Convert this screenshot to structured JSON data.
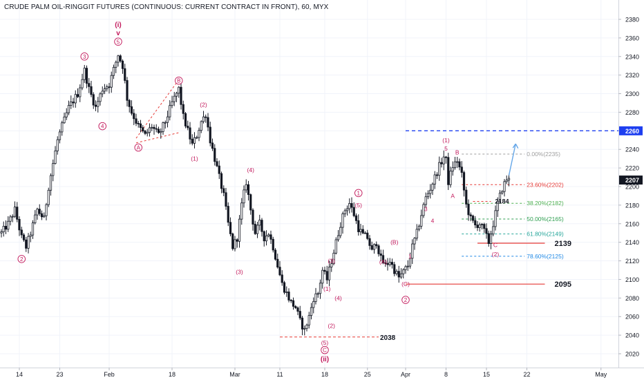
{
  "header": {
    "title": "CRUDE PALM OIL-RINGGIT FUTURES (CONTINUOUS: CURRENT CONTRACT IN FRONT), 60, MYX"
  },
  "colors": {
    "candle": "#131722",
    "wave": "#c2185b",
    "level": "#e53935",
    "blue": "#1e3ff0",
    "arrow": "#64a6e8",
    "fib_0": "#9e9e9e",
    "fib_236": "#e53935",
    "fib_382": "#4caf50",
    "fib_50": "#2e9e50",
    "fib_618": "#26a69a",
    "fib_786": "#1e88e5",
    "last_price_bg": "#131722"
  },
  "chart_data": {
    "type": "candlestick",
    "title": "CRUDE PALM OIL-RINGGIT FUTURES (CONTINUOUS: CURRENT CONTRACT IN FRONT), 60, MYX",
    "ylim": [
      2008,
      2390
    ],
    "y_ticks": [
      2020,
      2040,
      2060,
      2080,
      2100,
      2120,
      2140,
      2160,
      2180,
      2200,
      2220,
      2240,
      2260,
      2280,
      2300,
      2320,
      2340,
      2360,
      2380
    ],
    "x_ticks": [
      {
        "label": "14",
        "i": 8
      },
      {
        "label": "23",
        "i": 26
      },
      {
        "label": "Feb",
        "i": 48
      },
      {
        "label": "18",
        "i": 76
      },
      {
        "label": "Mar",
        "i": 104
      },
      {
        "label": "11",
        "i": 124
      },
      {
        "label": "18",
        "i": 144
      },
      {
        "label": "25",
        "i": 163
      },
      {
        "label": "Apr",
        "i": 180
      },
      {
        "label": "8",
        "i": 198
      },
      {
        "label": "15",
        "i": 216
      },
      {
        "label": "22",
        "i": 234
      },
      {
        "label": "May",
        "i": 267
      }
    ],
    "last_price": 2207,
    "price_path": [
      [
        0,
        2150
      ],
      [
        3,
        2160
      ],
      [
        6,
        2175
      ],
      [
        9,
        2145
      ],
      [
        11,
        2135
      ],
      [
        13,
        2150
      ],
      [
        16,
        2175
      ],
      [
        19,
        2165
      ],
      [
        21,
        2200
      ],
      [
        23,
        2225
      ],
      [
        25,
        2250
      ],
      [
        27,
        2265
      ],
      [
        30,
        2285
      ],
      [
        34,
        2300
      ],
      [
        37,
        2325
      ],
      [
        39,
        2305
      ],
      [
        42,
        2285
      ],
      [
        45,
        2305
      ],
      [
        48,
        2310
      ],
      [
        52,
        2342
      ],
      [
        54,
        2330
      ],
      [
        56,
        2295
      ],
      [
        58,
        2280
      ],
      [
        61,
        2265
      ],
      [
        64,
        2255
      ],
      [
        67,
        2265
      ],
      [
        70,
        2255
      ],
      [
        73,
        2270
      ],
      [
        76,
        2290
      ],
      [
        79,
        2305
      ],
      [
        81,
        2275
      ],
      [
        83,
        2260
      ],
      [
        85,
        2245
      ],
      [
        87,
        2255
      ],
      [
        89,
        2270
      ],
      [
        91,
        2278
      ],
      [
        93,
        2250
      ],
      [
        95,
        2230
      ],
      [
        97,
        2210
      ],
      [
        99,
        2190
      ],
      [
        101,
        2160
      ],
      [
        103,
        2135
      ],
      [
        105,
        2145
      ],
      [
        107,
        2180
      ],
      [
        109,
        2205
      ],
      [
        111,
        2175
      ],
      [
        113,
        2150
      ],
      [
        115,
        2160
      ],
      [
        117,
        2145
      ],
      [
        119,
        2150
      ],
      [
        121,
        2135
      ],
      [
        123,
        2115
      ],
      [
        125,
        2095
      ],
      [
        127,
        2085
      ],
      [
        129,
        2075
      ],
      [
        131,
        2070
      ],
      [
        133,
        2055
      ],
      [
        135,
        2045
      ],
      [
        137,
        2060
      ],
      [
        139,
        2080
      ],
      [
        141,
        2085
      ],
      [
        143,
        2110
      ],
      [
        145,
        2100
      ],
      [
        147,
        2120
      ],
      [
        149,
        2140
      ],
      [
        151,
        2160
      ],
      [
        153,
        2175
      ],
      [
        155,
        2182
      ],
      [
        157,
        2170
      ],
      [
        159,
        2155
      ],
      [
        161,
        2148
      ],
      [
        163,
        2145
      ],
      [
        165,
        2130
      ],
      [
        167,
        2140
      ],
      [
        169,
        2122
      ],
      [
        171,
        2115
      ],
      [
        173,
        2120
      ],
      [
        175,
        2110
      ],
      [
        177,
        2102
      ],
      [
        179,
        2108
      ],
      [
        181,
        2115
      ],
      [
        183,
        2135
      ],
      [
        185,
        2150
      ],
      [
        187,
        2170
      ],
      [
        189,
        2188
      ],
      [
        191,
        2198
      ],
      [
        193,
        2210
      ],
      [
        195,
        2222
      ],
      [
        197,
        2232
      ],
      [
        198,
        2228
      ],
      [
        199,
        2205
      ],
      [
        201,
        2222
      ],
      [
        203,
        2228
      ],
      [
        205,
        2212
      ],
      [
        206,
        2196
      ],
      [
        207,
        2180
      ],
      [
        209,
        2165
      ],
      [
        211,
        2158
      ],
      [
        213,
        2160
      ],
      [
        215,
        2152
      ],
      [
        217,
        2140
      ],
      [
        219,
        2160
      ],
      [
        221,
        2182
      ],
      [
        223,
        2198
      ],
      [
        225,
        2208
      ],
      [
        226,
        2207
      ]
    ]
  },
  "y_axis": {
    "labels": [
      "2020",
      "2040",
      "2060",
      "2080",
      "2100",
      "2120",
      "2140",
      "2160",
      "2180",
      "2200",
      "2220",
      "2240",
      "2260",
      "2280",
      "2300",
      "2320",
      "2340",
      "2360",
      "2380"
    ],
    "highlight_2260": "2260",
    "last_price_label": "2207"
  },
  "x_axis": {
    "labels": [
      "14",
      "23",
      "Feb",
      "18",
      "Mar",
      "11",
      "18",
      "25",
      "Apr",
      "8",
      "15",
      "22",
      "May"
    ]
  },
  "levels": {
    "blue_2260": {
      "price": 2260,
      "i0": 180
    },
    "support_2139": {
      "price": 2139,
      "i0": 212,
      "i1": 242,
      "label": "2139"
    },
    "support_2095": {
      "price": 2095,
      "i0": 180,
      "i1": 242,
      "label": "2095"
    },
    "support_2038": {
      "price": 2038,
      "i0": 124,
      "i1": 168,
      "label": "2038"
    },
    "level_2184": {
      "price": 2184,
      "i0": 210,
      "i1": 218,
      "label": "2184"
    }
  },
  "fib": [
    {
      "price": 2235,
      "label": "0.00%(2235)",
      "key": "fib_0"
    },
    {
      "price": 2202,
      "label": "23.60%(2202)",
      "key": "fib_236"
    },
    {
      "price": 2182,
      "label": "38.20%(2182)",
      "key": "fib_382"
    },
    {
      "price": 2165,
      "label": "50.00%(2165)",
      "key": "fib_50"
    },
    {
      "price": 2149,
      "label": "61.80%(2149)",
      "key": "fib_618"
    },
    {
      "price": 2125,
      "label": "78.60%(2125)",
      "key": "fib_786"
    }
  ],
  "wave_labels": [
    {
      "text": "2",
      "i": 9,
      "p": 2122,
      "circle": true
    },
    {
      "text": "3",
      "i": 37,
      "p": 2340,
      "circle": true
    },
    {
      "text": "4",
      "i": 45,
      "p": 2265,
      "circle": true
    },
    {
      "text": "5",
      "i": 52,
      "p": 2356,
      "circle": true
    },
    {
      "text": "(i)",
      "i": 52,
      "p": 2374,
      "circle": false,
      "bold": true
    },
    {
      "text": "v",
      "i": 52,
      "p": 2365,
      "circle": false,
      "bold": true
    },
    {
      "text": "A",
      "i": 61,
      "p": 2242,
      "circle": true
    },
    {
      "text": "B",
      "i": 79,
      "p": 2314,
      "circle": true
    },
    {
      "text": "(1)",
      "i": 86,
      "p": 2230,
      "circle": false
    },
    {
      "text": "(2)",
      "i": 90,
      "p": 2288,
      "circle": false
    },
    {
      "text": "(3)",
      "i": 106,
      "p": 2108,
      "circle": false
    },
    {
      "text": "(4)",
      "i": 111,
      "p": 2218,
      "circle": false
    },
    {
      "text": "(1)",
      "i": 145,
      "p": 2090,
      "circle": false
    },
    {
      "text": "(3)",
      "i": 147,
      "p": 2120,
      "circle": false
    },
    {
      "text": "(4)",
      "i": 150,
      "p": 2080,
      "circle": false
    },
    {
      "text": "(2)",
      "i": 147,
      "p": 2050,
      "circle": false
    },
    {
      "text": "(5)",
      "i": 144,
      "p": 2032,
      "circle": false
    },
    {
      "text": "C",
      "i": 144,
      "p": 2024,
      "circle": true
    },
    {
      "text": "(ii)",
      "i": 144,
      "p": 2014,
      "circle": false,
      "bold": true
    },
    {
      "text": "1",
      "i": 159,
      "p": 2193,
      "circle": true
    },
    {
      "text": "(5)",
      "i": 159,
      "p": 2180,
      "circle": false
    },
    {
      "text": "(B)",
      "i": 175,
      "p": 2140,
      "circle": false
    },
    {
      "text": "(A)",
      "i": 170,
      "p": 2119,
      "circle": false
    },
    {
      "text": "1",
      "i": 182,
      "p": 2125,
      "circle": false
    },
    {
      "text": "(C)",
      "i": 180,
      "p": 2095,
      "circle": false
    },
    {
      "text": "2",
      "i": 180,
      "p": 2078,
      "circle": true
    },
    {
      "text": "3",
      "i": 189,
      "p": 2176,
      "circle": false
    },
    {
      "text": "4",
      "i": 192,
      "p": 2163,
      "circle": false
    },
    {
      "text": "(1)",
      "i": 198,
      "p": 2250,
      "circle": false
    },
    {
      "text": "5",
      "i": 198,
      "p": 2241,
      "circle": false
    },
    {
      "text": "B",
      "i": 203,
      "p": 2237,
      "circle": false
    },
    {
      "text": "A",
      "i": 201,
      "p": 2190,
      "circle": false
    },
    {
      "text": "C",
      "i": 220,
      "p": 2137,
      "circle": false
    },
    {
      "text": "(2)",
      "i": 220,
      "p": 2127,
      "circle": false
    }
  ]
}
